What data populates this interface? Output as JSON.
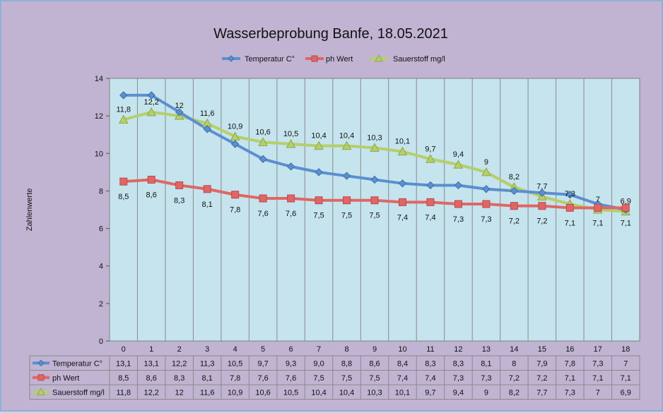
{
  "chart_data": {
    "type": "line",
    "title": "Wasserbeprobung Banfe, 18.05.2021",
    "xlabel": "",
    "ylabel": "Zahlenwerte",
    "ylim": [
      0,
      14
    ],
    "yticks": [
      0,
      2,
      4,
      6,
      8,
      10,
      12,
      14
    ],
    "grid": "vertical",
    "legend_position": "top",
    "categories": [
      "0",
      "1",
      "2",
      "3",
      "4",
      "5",
      "6",
      "7",
      "8",
      "9",
      "10",
      "11",
      "12",
      "13",
      "14",
      "15",
      "16",
      "17",
      "18"
    ],
    "series": [
      {
        "name": "Temperatur C°",
        "color": "#5b8fd0",
        "marker": "diamond",
        "values": [
          13.1,
          13.1,
          12.2,
          11.3,
          10.5,
          9.7,
          9.3,
          9.0,
          8.8,
          8.6,
          8.4,
          8.3,
          8.3,
          8.1,
          8,
          7.9,
          7.8,
          7.3,
          7
        ],
        "table_labels": [
          "13,1",
          "13,1",
          "12,2",
          "11,3",
          "10,5",
          "9,7",
          "9,3",
          "9,0",
          "8,8",
          "8,6",
          "8,4",
          "8,3",
          "8,3",
          "8,1",
          "8",
          "7,9",
          "7,8",
          "7,3",
          "7"
        ]
      },
      {
        "name": "ph Wert",
        "color": "#e06666",
        "marker": "square",
        "values": [
          8.5,
          8.6,
          8.3,
          8.1,
          7.8,
          7.6,
          7.6,
          7.5,
          7.5,
          7.5,
          7.4,
          7.4,
          7.3,
          7.3,
          7.2,
          7.2,
          7.1,
          7.1,
          7.1
        ],
        "table_labels": [
          "8,5",
          "8,6",
          "8,3",
          "8,1",
          "7,8",
          "7,6",
          "7,6",
          "7,5",
          "7,5",
          "7,5",
          "7,4",
          "7,4",
          "7,3",
          "7,3",
          "7,2",
          "7,2",
          "7,1",
          "7,1",
          "7,1"
        ],
        "data_labels": [
          "8,5",
          "8,6",
          "8,3",
          "8,1",
          "7,8",
          "7,6",
          "7,6",
          "7,5",
          "7,5",
          "7,5",
          "7,4",
          "7,4",
          "7,3",
          "7,3",
          "7,2",
          "7,2",
          "7,1",
          "7,1",
          "7,1"
        ]
      },
      {
        "name": "Sauerstoff mg/l",
        "color": "#b5cf6b",
        "marker": "triangle",
        "values": [
          11.8,
          12.2,
          12,
          11.6,
          10.9,
          10.6,
          10.5,
          10.4,
          10.4,
          10.3,
          10.1,
          9.7,
          9.4,
          9,
          8.2,
          7.7,
          7.3,
          7,
          6.9
        ],
        "table_labels": [
          "11,8",
          "12,2",
          "12",
          "11,6",
          "10,9",
          "10,6",
          "10,5",
          "10,4",
          "10,4",
          "10,3",
          "10,1",
          "9,7",
          "9,4",
          "9",
          "8,2",
          "7,7",
          "7,3",
          "7",
          "6,9"
        ],
        "data_labels": [
          "11,8",
          "12,2",
          "12",
          "11,6",
          "10,9",
          "10,6",
          "10,5",
          "10,4",
          "10,4",
          "10,3",
          "10,1",
          "9,7",
          "9,4",
          "9",
          "8,2",
          "7,7",
          "7,3",
          "7",
          "6,9"
        ]
      }
    ]
  }
}
